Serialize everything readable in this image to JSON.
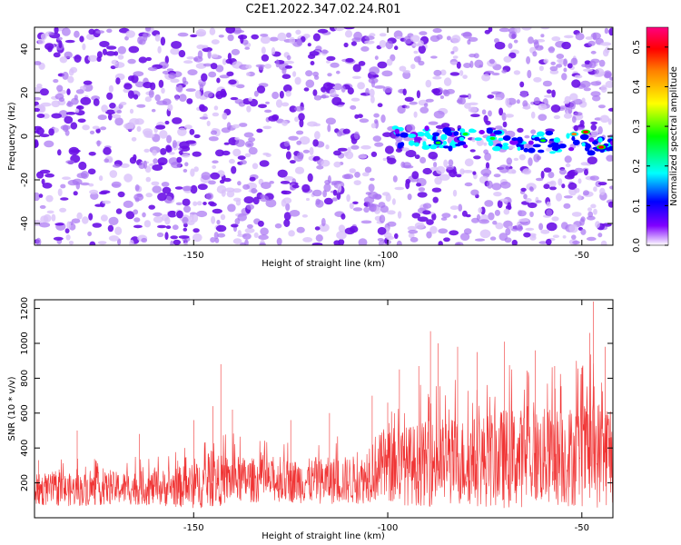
{
  "title": "C2E1.2022.347.02.24.R01",
  "colors": {
    "snr_trace": "#f03434",
    "spectrogram_low": "#ffffff",
    "spectrogram_mid": "#8a3cf0",
    "spectrogram_strong": "#5a00e0"
  },
  "chart_data": [
    {
      "type": "heatmap",
      "title": "C2E1.2022.347.02.24.R01",
      "xlabel": "Height of straight line (km)",
      "ylabel": "Frequency (Hz)",
      "xlim": [
        -191,
        -42
      ],
      "ylim": [
        -50,
        50
      ],
      "xticks": [
        -150,
        -100,
        -50
      ],
      "yticks": [
        40,
        20,
        0,
        -20,
        -40
      ],
      "colorbar": {
        "label": "Normalized spectral amplitude",
        "range": [
          0.0,
          0.55
        ],
        "ticks": [
          0.0,
          0.1,
          0.2,
          0.3,
          0.4,
          0.5
        ],
        "colormap": [
          "#ffffff",
          "#8000ff",
          "#0000ff",
          "#00ffff",
          "#00ff00",
          "#ffff00",
          "#ff8000",
          "#ff0000",
          "#ff0080"
        ]
      },
      "signal_band": {
        "x_range": [
          -100,
          -42
        ],
        "freq_center": 0,
        "freq_end": -4,
        "peaks": [
          {
            "x": -87,
            "freq": -3,
            "amp": 0.25
          },
          {
            "x": -80,
            "freq": 1,
            "amp": 0.3
          },
          {
            "x": -73,
            "freq": -1,
            "amp": 0.3
          },
          {
            "x": -60,
            "freq": -2,
            "amp": 0.28
          },
          {
            "x": -52,
            "freq": 1,
            "amp": 0.4
          },
          {
            "x": -49,
            "freq": 2,
            "amp": 0.5
          },
          {
            "x": -45,
            "freq": -5,
            "amp": 0.48
          }
        ]
      }
    },
    {
      "type": "line",
      "xlabel": "Height of straight line (km)",
      "ylabel": "SNR (10 * v/v)",
      "xlim": [
        -191,
        -42
      ],
      "ylim": [
        0,
        1250
      ],
      "xticks": [
        -150,
        -100,
        -50
      ],
      "yticks": [
        200,
        400,
        600,
        800,
        1000,
        1200
      ],
      "series": [
        {
          "envelope": {
            "x": [
              -191,
              -180,
              -170,
              -160,
              -150,
              -145,
              -140,
              -130,
              -120,
              -110,
              -106,
              -105,
              -95,
              -85,
              -80,
              -75,
              -70,
              -60,
              -55,
              -50,
              -45,
              -42
            ],
            "base": [
              160,
              160,
              170,
              170,
              180,
              210,
              220,
              210,
              210,
              215,
              220,
              280,
              300,
              320,
              320,
              330,
              340,
              350,
              350,
              360,
              370,
              380
            ],
            "spread": [
              90,
              95,
              95,
              100,
              130,
              150,
              140,
              120,
              130,
              140,
              140,
              190,
              230,
              260,
              250,
              270,
              290,
              280,
              290,
              300,
              320,
              310
            ]
          },
          "peaks": [
            {
              "x": -190,
              "y": 330
            },
            {
              "x": -180,
              "y": 500
            },
            {
              "x": -164,
              "y": 480
            },
            {
              "x": -150,
              "y": 560
            },
            {
              "x": -145,
              "y": 640
            },
            {
              "x": -143,
              "y": 880
            },
            {
              "x": -140,
              "y": 620
            },
            {
              "x": -125,
              "y": 560
            },
            {
              "x": -115,
              "y": 600
            },
            {
              "x": -104,
              "y": 700
            },
            {
              "x": -100,
              "y": 660
            },
            {
              "x": -97,
              "y": 850
            },
            {
              "x": -92,
              "y": 870
            },
            {
              "x": -89,
              "y": 1070
            },
            {
              "x": -87,
              "y": 1000
            },
            {
              "x": -82,
              "y": 980
            },
            {
              "x": -77,
              "y": 950
            },
            {
              "x": -70,
              "y": 1010
            },
            {
              "x": -62,
              "y": 960
            },
            {
              "x": -57,
              "y": 870
            },
            {
              "x": -50,
              "y": 860
            },
            {
              "x": -48,
              "y": 1060
            },
            {
              "x": -47,
              "y": 1240
            },
            {
              "x": -44,
              "y": 980
            },
            {
              "x": -42,
              "y": 980
            }
          ]
        }
      ]
    }
  ]
}
